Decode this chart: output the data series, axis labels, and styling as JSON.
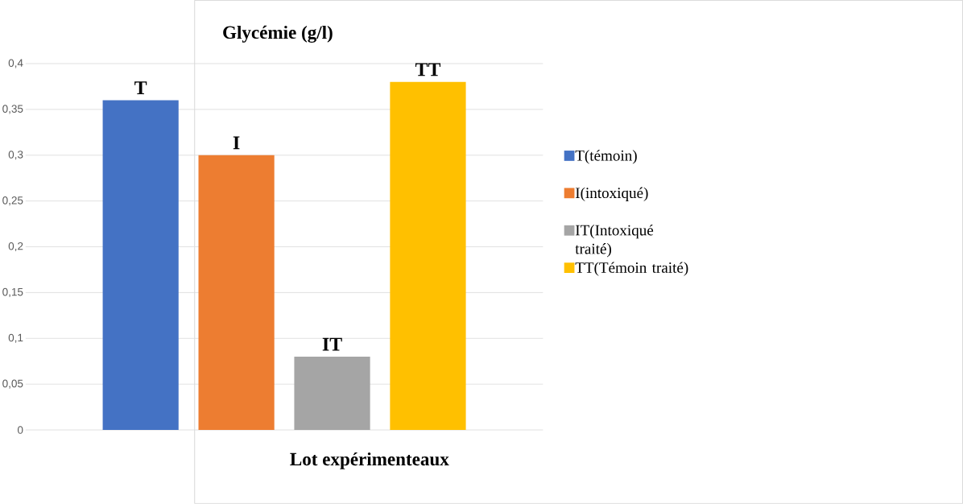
{
  "chart_data": {
    "type": "bar",
    "title": "Glycémie (g/l)",
    "xlabel": "Lot expérimenteaux",
    "categories": [
      null
    ],
    "series": [
      {
        "name": "T(témoin)",
        "color": "#4472c4",
        "values": [
          0.36
        ]
      },
      {
        "name": "I(intoxiqué)",
        "color": "#ed7d31",
        "values": [
          0.3
        ]
      },
      {
        "name": "IT(Intoxiqué traité)",
        "color": "#a5a5a5",
        "values": [
          0.08
        ]
      },
      {
        "name": "TT(Témoin traité)",
        "color": "#ffc000",
        "values": [
          0.38
        ]
      }
    ],
    "annotations": [
      {
        "text": "T",
        "y": 0.36
      },
      {
        "text": "I",
        "y": 0.3
      },
      {
        "text": "IT",
        "y": 0.08
      },
      {
        "text": "TT",
        "y": 0.38
      }
    ],
    "ylim": [
      0,
      0.4
    ],
    "yticks": [
      0,
      {
        "value": 0.05,
        "label": "0,05"
      },
      {
        "value": 0.1,
        "label": "0,1"
      },
      {
        "value": 0.15,
        "label": "0,15"
      },
      {
        "value": 0.2,
        "label": "0,2"
      },
      {
        "value": 0.25,
        "label": "0,25"
      },
      {
        "value": 0.3,
        "label": "0,3"
      },
      {
        "value": 0.35,
        "label": "0,35"
      },
      {
        "value": 0.4,
        "label": "0,4"
      }
    ],
    "grid": "y",
    "legend": "right"
  }
}
